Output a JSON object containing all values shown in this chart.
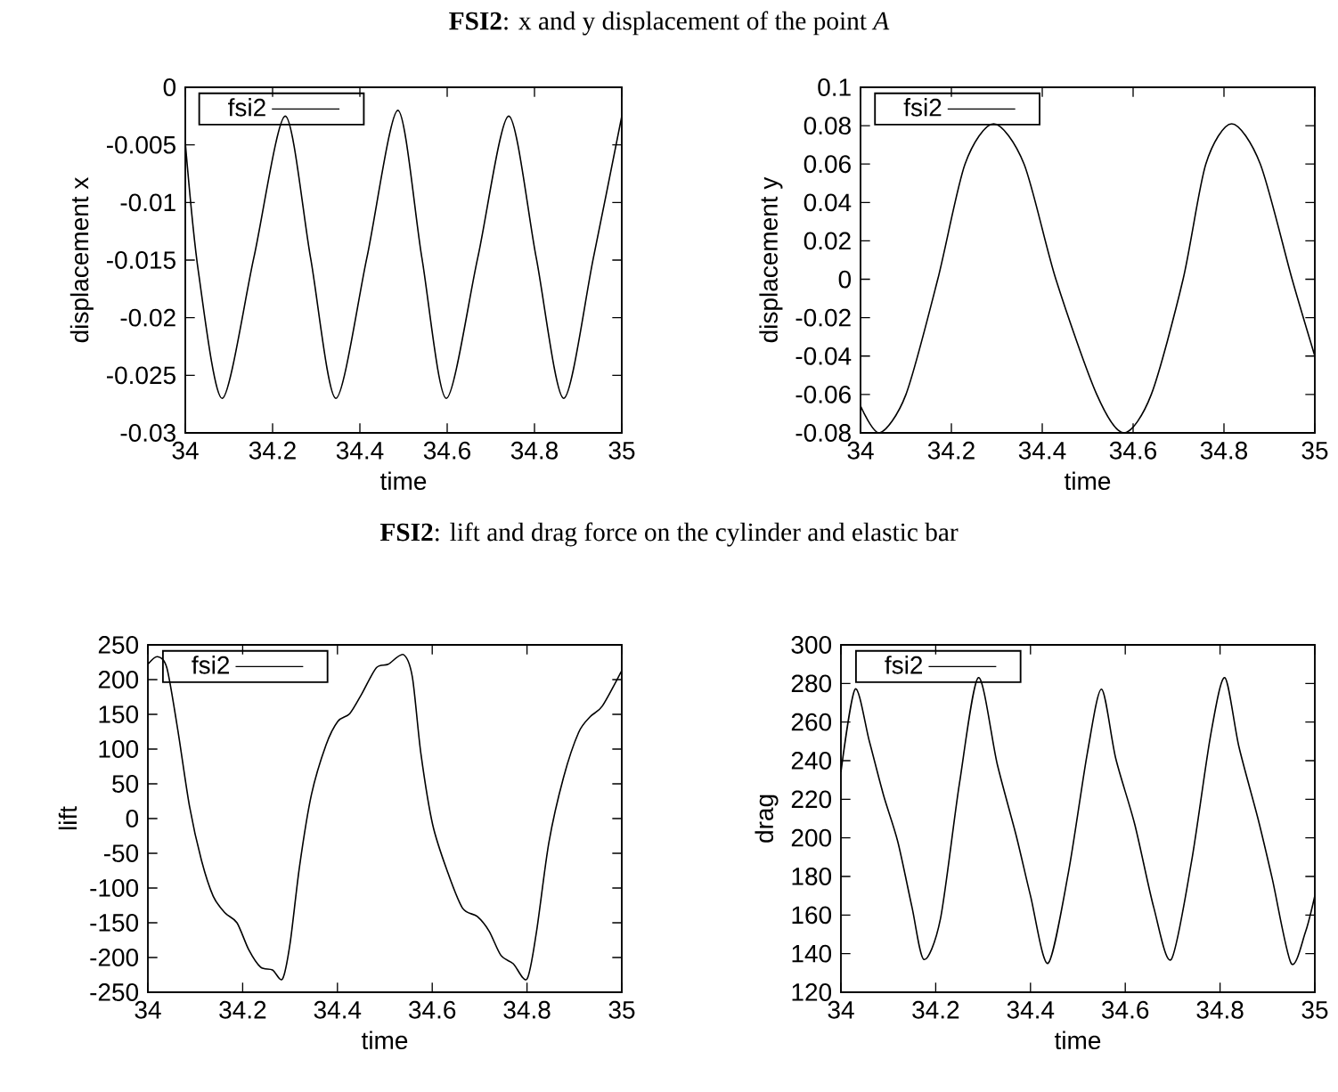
{
  "chart_data": [
    {
      "type": "line",
      "title": "**FSI2**: x and y displacement of the point *A*",
      "xlabel": "time",
      "ylabel": "displacement x",
      "legend": "top left",
      "xlim": [
        34,
        35
      ],
      "ylim": [
        -0.03,
        0
      ],
      "xticks": [
        34,
        34.2,
        34.4,
        34.6,
        34.8,
        35
      ],
      "yticks": [
        -0.03,
        -0.025,
        -0.02,
        -0.015,
        -0.01,
        -0.005,
        0
      ],
      "x": [
        34.0,
        34.03,
        34.085,
        34.157,
        34.229,
        34.287,
        34.345,
        34.416,
        34.487,
        34.542,
        34.598,
        34.67,
        34.741,
        34.804,
        34.867,
        34.935,
        35.0
      ],
      "series": [
        {
          "name": "fsi2",
          "color": "#000000",
          "values": [
            -0.0048,
            -0.016,
            -0.027,
            -0.0148,
            -0.0025,
            -0.0148,
            -0.027,
            -0.0148,
            -0.002,
            -0.0148,
            -0.027,
            -0.0148,
            -0.0025,
            -0.0148,
            -0.027,
            -0.0148,
            -0.0025
          ]
        }
      ]
    },
    {
      "type": "line",
      "xlabel": "time",
      "ylabel": "displacement y",
      "legend": "top left",
      "xlim": [
        34,
        35
      ],
      "ylim": [
        -0.08,
        0.1
      ],
      "xticks": [
        34,
        34.2,
        34.4,
        34.6,
        34.8,
        35
      ],
      "yticks": [
        -0.08,
        -0.06,
        -0.04,
        -0.02,
        0,
        0.02,
        0.04,
        0.06,
        0.08,
        0.1
      ],
      "x": [
        34.0,
        34.042,
        34.1,
        34.17,
        34.23,
        34.293,
        34.36,
        34.43,
        34.52,
        34.58,
        34.64,
        34.71,
        34.76,
        34.817,
        34.88,
        34.95,
        35.0
      ],
      "series": [
        {
          "name": "fsi2",
          "color": "#000000",
          "values": [
            -0.066,
            -0.08,
            -0.06,
            0.0,
            0.06,
            0.081,
            0.06,
            0.0,
            -0.06,
            -0.08,
            -0.06,
            0.0,
            0.06,
            0.081,
            0.06,
            0.0,
            -0.04
          ]
        }
      ]
    },
    {
      "type": "line",
      "title": "**FSI2**: lift and drag force on the cylinder and elastic bar",
      "xlabel": "time",
      "ylabel": "lift",
      "legend": "top left",
      "xlim": [
        34,
        35
      ],
      "ylim": [
        -250,
        250
      ],
      "xticks": [
        34,
        34.2,
        34.4,
        34.6,
        34.8,
        35
      ],
      "yticks": [
        -250,
        -200,
        -150,
        -100,
        -50,
        0,
        50,
        100,
        150,
        200,
        250
      ],
      "x": [
        34.0,
        34.02,
        34.04,
        34.063,
        34.088,
        34.113,
        34.138,
        34.163,
        34.188,
        34.213,
        34.238,
        34.263,
        34.284,
        34.3,
        34.32,
        34.345,
        34.376,
        34.401,
        34.426,
        34.451,
        34.482,
        34.507,
        34.539,
        34.558,
        34.576,
        34.601,
        34.633,
        34.664,
        34.695,
        34.72,
        34.745,
        34.771,
        34.8,
        34.82,
        34.846,
        34.877,
        34.909,
        34.934,
        34.959,
        35.0
      ],
      "series": [
        {
          "name": "fsi2",
          "color": "#000000",
          "values": [
            222,
            233,
            217,
            128,
            17,
            -60,
            -112,
            -136,
            -150,
            -189,
            -214,
            -218,
            -231,
            -180,
            -69,
            34,
            106,
            140,
            151,
            179,
            217,
            222,
            236,
            204,
            94,
            -9,
            -78,
            -129,
            -141,
            -162,
            -197,
            -209,
            -231,
            -163,
            -35,
            59,
            124,
            147,
            162,
            213
          ]
        }
      ]
    },
    {
      "type": "line",
      "xlabel": "time",
      "ylabel": "drag",
      "legend": "top left",
      "xlim": [
        34,
        35
      ],
      "ylim": [
        120,
        300
      ],
      "xticks": [
        34,
        34.2,
        34.4,
        34.6,
        34.8,
        35
      ],
      "yticks": [
        120,
        140,
        160,
        180,
        200,
        220,
        240,
        260,
        280,
        300
      ],
      "x": [
        34.0,
        34.03,
        34.06,
        34.09,
        34.12,
        34.15,
        34.175,
        34.21,
        34.25,
        34.29,
        34.33,
        34.37,
        34.4,
        34.437,
        34.48,
        34.52,
        34.55,
        34.58,
        34.62,
        34.66,
        34.697,
        34.74,
        34.78,
        34.81,
        34.84,
        34.88,
        34.91,
        34.95,
        34.98,
        35.0
      ],
      "series": [
        {
          "name": "fsi2",
          "color": "#000000",
          "values": [
            234,
            277,
            250,
            222,
            198,
            164,
            137,
            158,
            228,
            283,
            238,
            201,
            170,
            135,
            182,
            244,
            277,
            241,
            207,
            164,
            137,
            188,
            253,
            283,
            247,
            210,
            179,
            135,
            151,
            170
          ]
        }
      ]
    }
  ]
}
